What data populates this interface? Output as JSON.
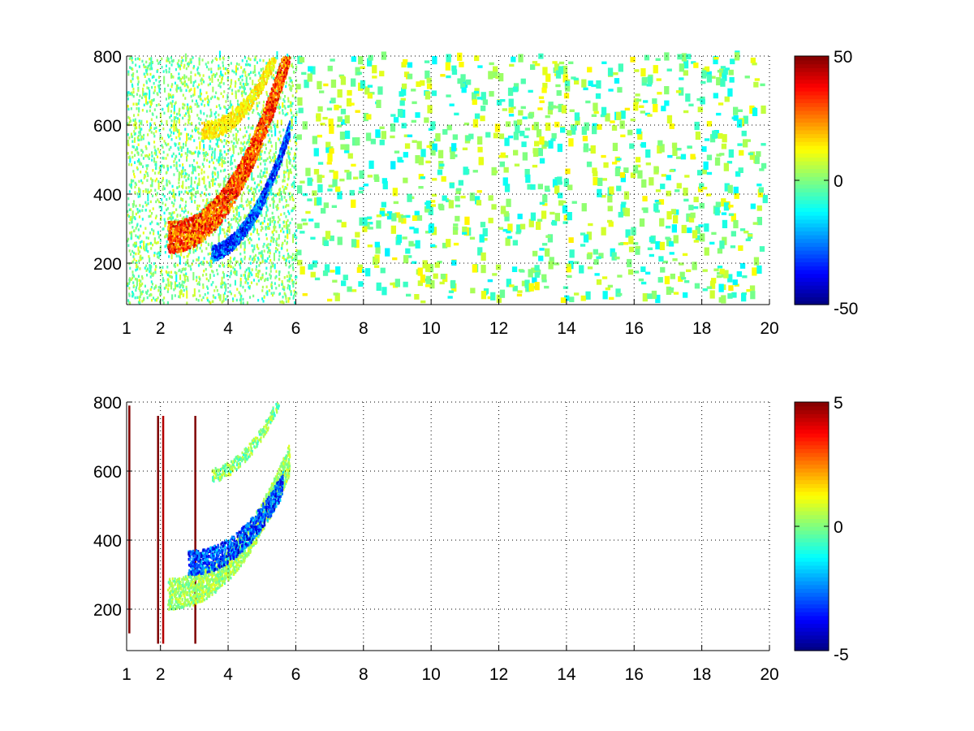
{
  "chart_data": [
    {
      "type": "heatmap",
      "title": "",
      "xlabel": "",
      "ylabel": "",
      "xlim": [
        1,
        20
      ],
      "ylim": [
        80,
        800
      ],
      "x_ticks": [
        1,
        2,
        4,
        6,
        8,
        10,
        12,
        14,
        16,
        18,
        20
      ],
      "x_tick_labels": [
        "1",
        "2",
        "4",
        "6",
        "8",
        "10",
        "12",
        "14",
        "16",
        "18",
        "20"
      ],
      "y_ticks": [
        200,
        400,
        600,
        800
      ],
      "y_tick_labels": [
        "200",
        "400",
        "600",
        "800"
      ],
      "grid": true,
      "colormap": "jet",
      "clim": [
        -50,
        50
      ],
      "colorbar_ticks": [
        -50,
        0,
        50
      ],
      "colorbar_tick_labels": [
        "-50",
        "0",
        "50"
      ],
      "features": [
        {
          "name": "positive arc",
          "x_range": [
            2.2,
            5.8
          ],
          "y_at_start": 250,
          "y_at_end": 800,
          "value": 40
        },
        {
          "name": "negative arc",
          "x_range": [
            3.5,
            5.8
          ],
          "y_at_start": 270,
          "y_at_end": 620,
          "value": -40
        },
        {
          "name": "upper positive arc",
          "x_range": [
            3.2,
            5.4
          ],
          "y_at_start": 580,
          "y_at_end": 800,
          "value": 15
        },
        {
          "name": "scattered noise",
          "x_range": [
            1,
            20
          ],
          "y_range": [
            80,
            800
          ],
          "value_range": [
            -15,
            15
          ]
        }
      ]
    },
    {
      "type": "heatmap",
      "title": "",
      "xlabel": "",
      "ylabel": "",
      "xlim": [
        1,
        20
      ],
      "ylim": [
        80,
        800
      ],
      "x_ticks": [
        1,
        2,
        4,
        6,
        8,
        10,
        12,
        14,
        16,
        18,
        20
      ],
      "x_tick_labels": [
        "1",
        "2",
        "4",
        "6",
        "8",
        "10",
        "12",
        "14",
        "16",
        "18",
        "20"
      ],
      "y_ticks": [
        200,
        400,
        600,
        800
      ],
      "y_tick_labels": [
        "200",
        "400",
        "600",
        "800"
      ],
      "grid": true,
      "colormap": "jet",
      "clim": [
        -5,
        5
      ],
      "colorbar_ticks": [
        -5,
        0,
        5
      ],
      "colorbar_tick_labels": [
        "-5",
        "0",
        "5"
      ],
      "features": [
        {
          "name": "near-zero arc",
          "x_range": [
            2.2,
            5.8
          ],
          "y_at_start": 240,
          "y_at_end": 620,
          "value": 0.5
        },
        {
          "name": "negative arc",
          "x_range": [
            2.8,
            5.6
          ],
          "y_at_start": 330,
          "y_at_end": 560,
          "value": -3
        },
        {
          "name": "vertical streaks",
          "x": [
            1.05,
            1.9,
            2.05,
            3.0
          ],
          "value": 5
        }
      ]
    }
  ]
}
